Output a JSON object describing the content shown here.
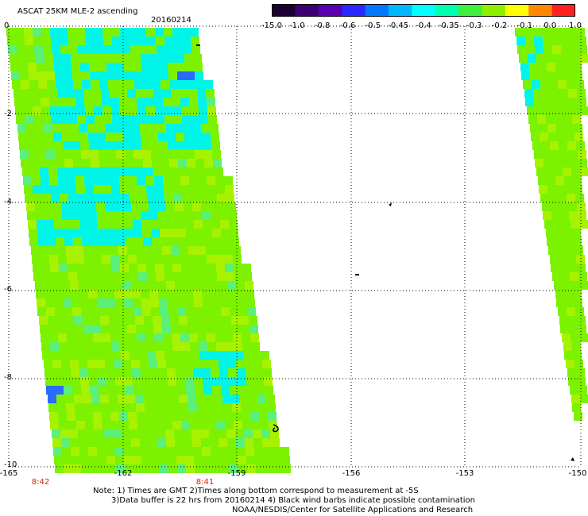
{
  "header": {
    "title": "ASCAT 25KM MLE-2 ascending",
    "date": "20160214"
  },
  "colorbar": {
    "labels": [
      "-15.0",
      "-1.0",
      "-0.8",
      "-0.6",
      "-0.5",
      "-0.45",
      "-0.4",
      "-0.35",
      "-0.3",
      "-0.2",
      "-0.1",
      "0.0",
      "1.0"
    ],
    "colors": [
      "#1a0033",
      "#3d0073",
      "#5a00b0",
      "#2a28ff",
      "#0078ff",
      "#00b8ff",
      "#00ffff",
      "#00ffb0",
      "#3cf03c",
      "#8cf000",
      "#ffff00",
      "#ff8800",
      "#ff2020"
    ]
  },
  "axes": {
    "y_labels": [
      "0",
      "-2",
      "-4",
      "-6",
      "-8",
      "-10"
    ],
    "x_labels": [
      "-165",
      "-162",
      "-159",
      "-156",
      "-153",
      "-150"
    ]
  },
  "times": [
    "8:42",
    "8:41"
  ],
  "notes": {
    "line1": "Note: 1) Times are GMT 2)Times along bottom correspond to measurement at -5S",
    "line2": "3)Data buffer is 22 hrs from 20160214 4) Black wind barbs indicate possible contamination",
    "line3": "NOAA/NESDIS/Center for Satellite Applications and Research"
  },
  "swath_colors": {
    "green": "#7cf200",
    "yellowgreen": "#a6f200",
    "cyan": "#00f5e8",
    "blue": "#2a6bff"
  }
}
